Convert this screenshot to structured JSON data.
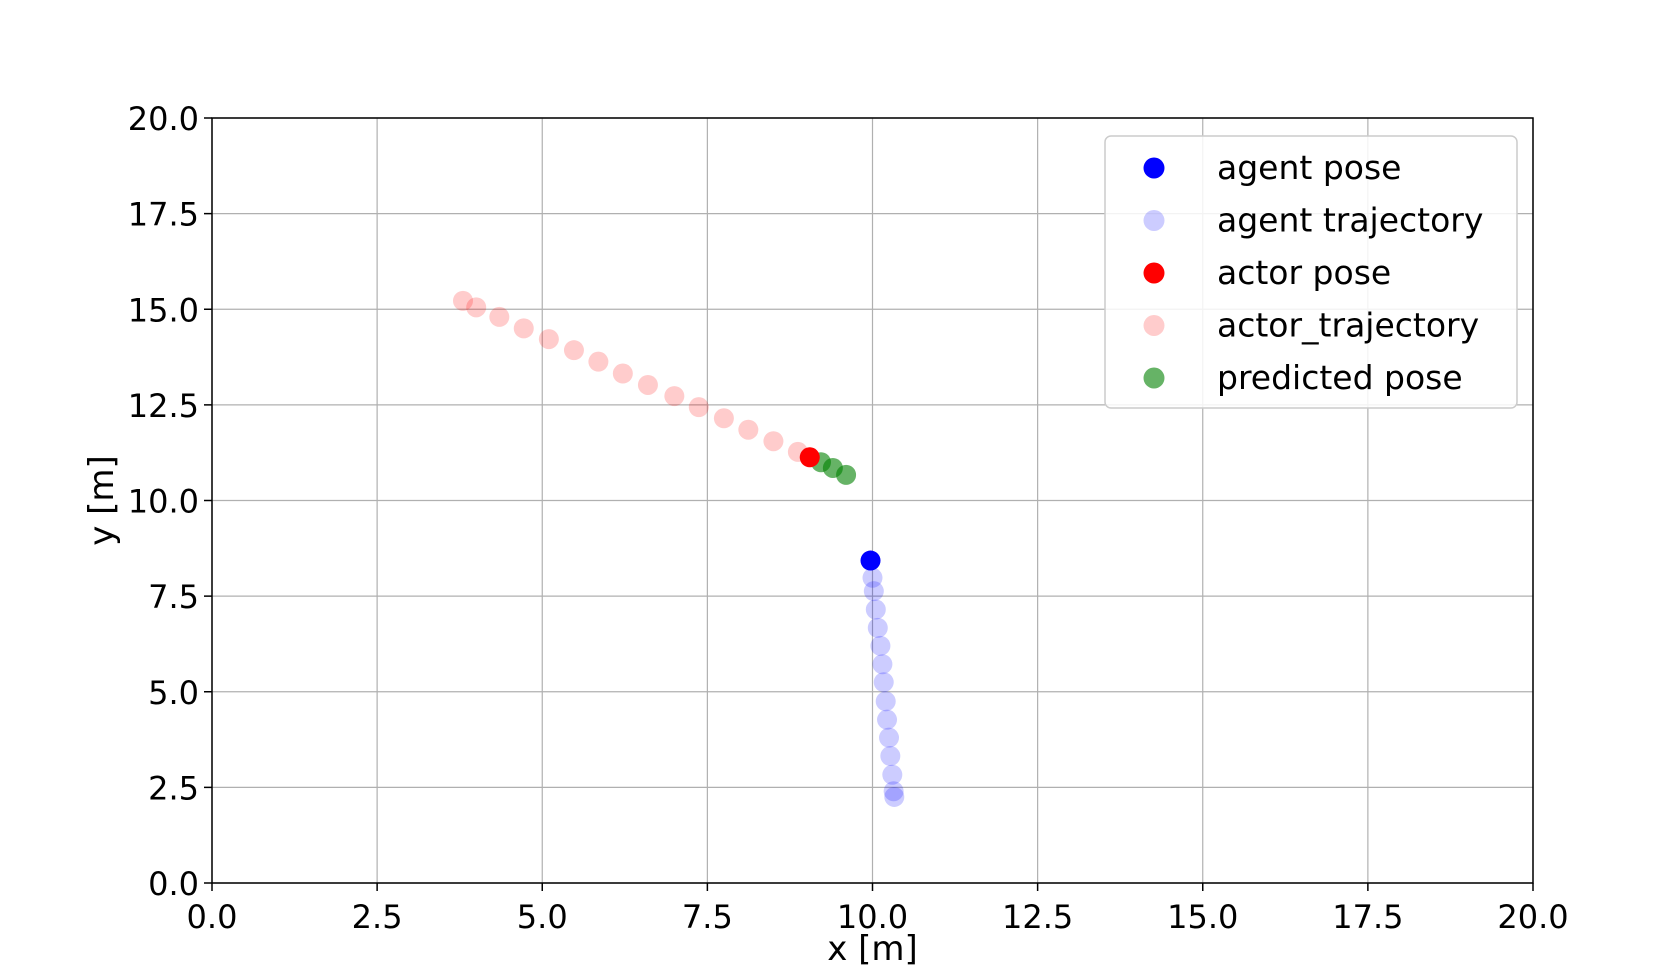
{
  "chart_data": {
    "type": "scatter",
    "title": "",
    "xlabel": "x [m]",
    "ylabel": "y [m]",
    "xlim": [
      0,
      20
    ],
    "ylim": [
      0,
      20
    ],
    "xticks": [
      0,
      2.5,
      5,
      7.5,
      10,
      12.5,
      15,
      17.5,
      20
    ],
    "yticks": [
      0,
      2.5,
      5,
      7.5,
      10,
      12.5,
      15,
      17.5,
      20
    ],
    "xtick_labels": [
      "0.0",
      "2.5",
      "5.0",
      "7.5",
      "10.0",
      "12.5",
      "15.0",
      "17.5",
      "20.0"
    ],
    "ytick_labels": [
      "0.0",
      "2.5",
      "5.0",
      "7.5",
      "10.0",
      "12.5",
      "15.0",
      "17.5",
      "20.0"
    ],
    "grid": true,
    "legend_position": "top-right",
    "series": [
      {
        "name": "agent pose",
        "color": "#0000ff",
        "alpha": 1.0,
        "points": [
          [
            9.97,
            8.43
          ]
        ]
      },
      {
        "name": "agent trajectory",
        "color": "#0000ff",
        "alpha": 0.2,
        "points": [
          [
            9.97,
            8.43
          ],
          [
            10.0,
            7.98
          ],
          [
            10.02,
            7.63
          ],
          [
            10.05,
            7.15
          ],
          [
            10.08,
            6.67
          ],
          [
            10.12,
            6.2
          ],
          [
            10.15,
            5.72
          ],
          [
            10.17,
            5.25
          ],
          [
            10.2,
            4.75
          ],
          [
            10.22,
            4.27
          ],
          [
            10.25,
            3.8
          ],
          [
            10.27,
            3.32
          ],
          [
            10.3,
            2.83
          ],
          [
            10.32,
            2.4
          ],
          [
            10.33,
            2.25
          ]
        ]
      },
      {
        "name": "actor pose",
        "color": "#ff0000",
        "alpha": 1.0,
        "points": [
          [
            9.05,
            11.13
          ]
        ]
      },
      {
        "name": "actor_trajectory",
        "color": "#ff0000",
        "alpha": 0.2,
        "points": [
          [
            3.8,
            15.22
          ],
          [
            4.0,
            15.05
          ],
          [
            4.35,
            14.8
          ],
          [
            4.72,
            14.5
          ],
          [
            5.1,
            14.22
          ],
          [
            5.48,
            13.93
          ],
          [
            5.85,
            13.63
          ],
          [
            6.22,
            13.32
          ],
          [
            6.6,
            13.02
          ],
          [
            7.0,
            12.73
          ],
          [
            7.37,
            12.44
          ],
          [
            7.75,
            12.15
          ],
          [
            8.12,
            11.85
          ],
          [
            8.5,
            11.55
          ],
          [
            8.87,
            11.27
          ],
          [
            9.05,
            11.13
          ]
        ]
      },
      {
        "name": "predicted pose",
        "color": "#008000",
        "alpha": 0.6,
        "points": [
          [
            9.22,
            11.0
          ],
          [
            9.4,
            10.85
          ],
          [
            9.6,
            10.67
          ]
        ]
      }
    ]
  }
}
